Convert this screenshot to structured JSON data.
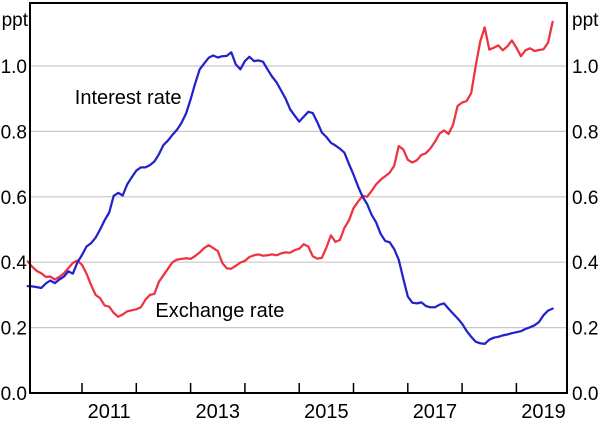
{
  "chart_data": {
    "type": "line",
    "unit_label": "ppt",
    "x_axis": {
      "tick_years": [
        2011,
        2012,
        2013,
        2014,
        2015,
        2016,
        2017,
        2018,
        2019
      ],
      "label_years": [
        "2011",
        "2013",
        "2015",
        "2017",
        "2019"
      ],
      "range": [
        2010.0,
        2019.93
      ],
      "grid": false
    },
    "y_axis": {
      "tick_labels": [
        "0.0",
        "0.2",
        "0.4",
        "0.6",
        "0.8",
        "1.0"
      ],
      "tick_values": [
        0.0,
        0.2,
        0.4,
        0.6,
        0.8,
        1.0
      ],
      "range": [
        0.0,
        1.19
      ],
      "sides": "both",
      "grid": true
    },
    "colors": {
      "interest_rate": "#2222cc",
      "exchange_rate": "#ee3340",
      "grid": "#c8c8c8",
      "axis": "#000000"
    },
    "series": [
      {
        "name": "Exchange rate",
        "key": "exchange-rate",
        "color_key": "exchange_rate",
        "start_year": 2010,
        "points_per_year": 12,
        "values": [
          0.402,
          0.386,
          0.373,
          0.366,
          0.355,
          0.356,
          0.347,
          0.355,
          0.366,
          0.382,
          0.398,
          0.405,
          0.392,
          0.365,
          0.33,
          0.3,
          0.29,
          0.268,
          0.264,
          0.245,
          0.233,
          0.24,
          0.25,
          0.253,
          0.256,
          0.262,
          0.285,
          0.3,
          0.303,
          0.34,
          0.36,
          0.38,
          0.4,
          0.408,
          0.41,
          0.412,
          0.41,
          0.419,
          0.43,
          0.443,
          0.452,
          0.443,
          0.434,
          0.398,
          0.381,
          0.38,
          0.389,
          0.399,
          0.404,
          0.416,
          0.421,
          0.424,
          0.42,
          0.421,
          0.424,
          0.421,
          0.427,
          0.43,
          0.429,
          0.437,
          0.441,
          0.455,
          0.448,
          0.418,
          0.411,
          0.413,
          0.445,
          0.482,
          0.462,
          0.468,
          0.505,
          0.528,
          0.565,
          0.585,
          0.603,
          0.6,
          0.618,
          0.638,
          0.652,
          0.663,
          0.674,
          0.695,
          0.755,
          0.745,
          0.713,
          0.705,
          0.712,
          0.728,
          0.733,
          0.748,
          0.768,
          0.793,
          0.803,
          0.792,
          0.82,
          0.878,
          0.888,
          0.893,
          0.917,
          1.0,
          1.075,
          1.118,
          1.05,
          1.056,
          1.063,
          1.048,
          1.06,
          1.078,
          1.056,
          1.03,
          1.048,
          1.054,
          1.046,
          1.049,
          1.051,
          1.072,
          1.135
        ]
      },
      {
        "name": "Interest rate",
        "key": "interest-rate",
        "color_key": "interest_rate",
        "start_year": 2010,
        "points_per_year": 12,
        "values": [
          0.327,
          0.326,
          0.324,
          0.321,
          0.335,
          0.344,
          0.336,
          0.347,
          0.356,
          0.372,
          0.365,
          0.4,
          0.422,
          0.448,
          0.458,
          0.475,
          0.5,
          0.528,
          0.552,
          0.603,
          0.612,
          0.604,
          0.638,
          0.66,
          0.68,
          0.69,
          0.69,
          0.697,
          0.708,
          0.73,
          0.758,
          0.772,
          0.79,
          0.805,
          0.826,
          0.855,
          0.898,
          0.946,
          0.99,
          1.008,
          1.025,
          1.032,
          1.026,
          1.03,
          1.031,
          1.042,
          1.005,
          0.99,
          1.015,
          1.028,
          1.015,
          1.017,
          1.013,
          0.99,
          0.968,
          0.95,
          0.925,
          0.9,
          0.868,
          0.848,
          0.83,
          0.845,
          0.86,
          0.856,
          0.828,
          0.797,
          0.783,
          0.765,
          0.757,
          0.747,
          0.735,
          0.7,
          0.668,
          0.632,
          0.6,
          0.578,
          0.545,
          0.522,
          0.487,
          0.465,
          0.461,
          0.44,
          0.408,
          0.35,
          0.295,
          0.276,
          0.274,
          0.277,
          0.266,
          0.262,
          0.262,
          0.27,
          0.274,
          0.258,
          0.243,
          0.228,
          0.212,
          0.19,
          0.172,
          0.157,
          0.152,
          0.15,
          0.163,
          0.169,
          0.172,
          0.176,
          0.179,
          0.183,
          0.186,
          0.189,
          0.196,
          0.201,
          0.207,
          0.217,
          0.238,
          0.252,
          0.258
        ]
      }
    ],
    "annotations": [
      {
        "text": "Interest rate",
        "t": 2011.85,
        "v": 0.905,
        "color_key": "interest_rate"
      },
      {
        "text": "Exchange rate",
        "t": 2013.54,
        "v": 0.254,
        "color_key": "exchange_rate"
      }
    ]
  }
}
